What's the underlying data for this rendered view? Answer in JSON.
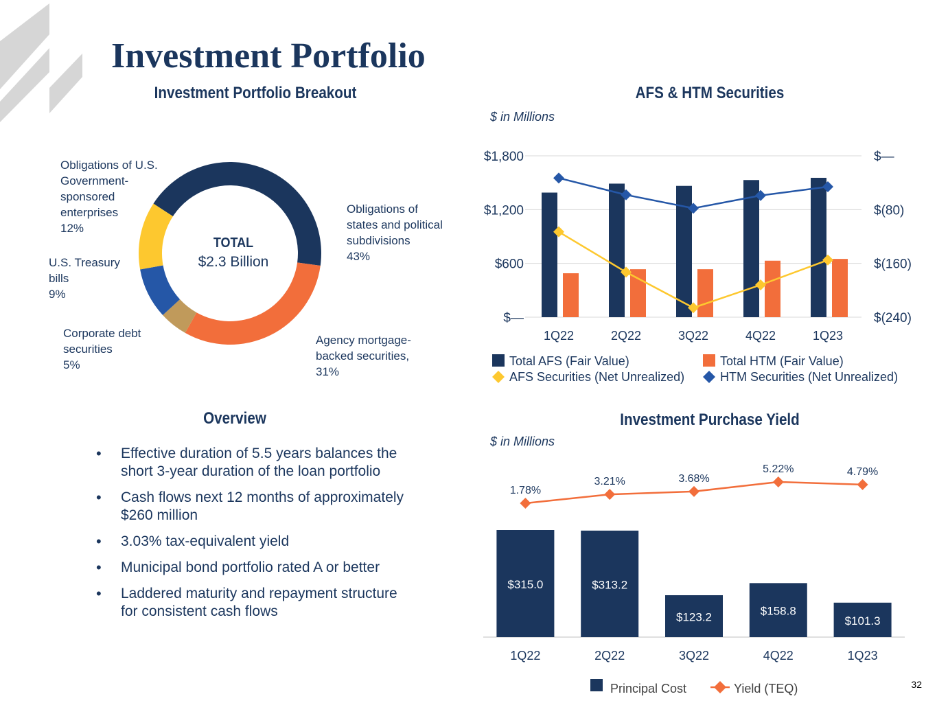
{
  "page": {
    "title": "Investment Portfolio",
    "page_number": "32"
  },
  "breakout": {
    "title": "Investment Portfolio Breakout",
    "center_label": "TOTAL",
    "center_value": "$2.3 Billion"
  },
  "overview": {
    "title": "Overview",
    "bullets": [
      "Effective duration of 5.5 years balances the short 3-year duration of the loan portfolio",
      "Cash flows next 12 months of approximately $260 million",
      "3.03% tax-equivalent yield",
      "Municipal bond portfolio rated A or better",
      "Laddered maturity and repayment structure for consistent cash flows"
    ]
  },
  "afs_htm": {
    "title": "AFS & HTM Securities",
    "units": "$ in Millions"
  },
  "yield_chart": {
    "title": "Investment Purchase Yield",
    "units": "$ in Millions"
  },
  "colors": {
    "navy": "#1b365d",
    "orange": "#f26e3b",
    "yellow": "#fdc82f",
    "blue": "#2557a7",
    "tan": "#c09a5b",
    "grid": "#d9d9d9",
    "deco": "#d6d6d6"
  },
  "chart_data": [
    {
      "type": "pie",
      "title": "Investment Portfolio Breakout",
      "donut": true,
      "center_text": [
        "TOTAL",
        "$2.3 Billion"
      ],
      "slices": [
        {
          "label": [
            "Obligations of",
            "states and political",
            "subdivisions"
          ],
          "value": 43,
          "display": "43%",
          "color": "#1b365d"
        },
        {
          "label": [
            "Agency mortgage-",
            "backed securities,"
          ],
          "value": 31,
          "display": "31%",
          "color": "#f26e3b"
        },
        {
          "label": [
            "Corporate debt",
            "securities"
          ],
          "value": 5,
          "display": "5%",
          "color": "#c09a5b"
        },
        {
          "label": [
            "U.S. Treasury",
            "bills"
          ],
          "value": 9,
          "display": "9%",
          "color": "#2557a7"
        },
        {
          "label": [
            "Obligations of U.S.",
            "Government-",
            "sponsored",
            "enterprises"
          ],
          "value": 12,
          "display": "12%",
          "color": "#fdc82f"
        }
      ]
    },
    {
      "type": "bar",
      "title": "AFS & HTM Securities",
      "units": "$ in Millions",
      "categories": [
        "1Q22",
        "2Q22",
        "3Q22",
        "4Q22",
        "1Q23"
      ],
      "ylim": [
        0,
        1800
      ],
      "yticks": [
        0,
        600,
        1200,
        1800
      ],
      "ytick_labels": [
        "$—",
        "$600",
        "$1,200",
        "$1,800"
      ],
      "y2lim": [
        -240,
        0
      ],
      "y2ticks": [
        -240,
        -160,
        -80,
        0
      ],
      "y2tick_labels": [
        "$(240)",
        "$(160)",
        "$(80)",
        "$—"
      ],
      "grid": true,
      "legend_position": "bottom",
      "series": [
        {
          "name": "Total AFS (Fair Value)",
          "type": "bar",
          "axis": "left",
          "color": "#1b365d",
          "values": [
            1390,
            1490,
            1465,
            1530,
            1555
          ]
        },
        {
          "name": "Total HTM (Fair Value)",
          "type": "bar",
          "axis": "left",
          "color": "#f26e3b",
          "values": [
            490,
            535,
            535,
            630,
            650
          ]
        },
        {
          "name": "AFS Securities (Net Unrealized)",
          "type": "line",
          "axis": "right",
          "color": "#fdc82f",
          "values": [
            -113,
            -173,
            -226,
            -192,
            -155
          ]
        },
        {
          "name": "HTM Securities (Net Unrealized)",
          "type": "line",
          "axis": "right",
          "color": "#2557a7",
          "values": [
            -33,
            -58,
            -78,
            -59,
            -46
          ]
        }
      ]
    },
    {
      "type": "bar",
      "title": "Investment Purchase Yield",
      "units": "$ in Millions",
      "categories": [
        "1Q22",
        "2Q22",
        "3Q22",
        "4Q22",
        "1Q23"
      ],
      "legend_position": "bottom",
      "series": [
        {
          "name": "Principal Cost",
          "type": "bar",
          "color": "#1b365d",
          "values": [
            315.0,
            313.2,
            123.2,
            158.8,
            101.3
          ],
          "labels": [
            "$315.0",
            "$313.2",
            "$123.2",
            "$158.8",
            "$101.3"
          ]
        },
        {
          "name": "Yield (TEQ)",
          "type": "line",
          "color": "#f26e3b",
          "values": [
            1.78,
            3.21,
            3.68,
            5.22,
            4.79
          ],
          "labels": [
            "1.78%",
            "3.21%",
            "3.68%",
            "5.22%",
            "4.79%"
          ]
        }
      ]
    }
  ]
}
